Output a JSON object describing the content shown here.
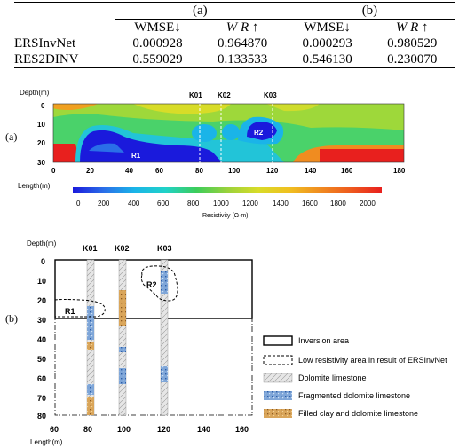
{
  "table": {
    "group_a": "(a)",
    "group_b": "(b)",
    "col_wmse": "WMSE↓",
    "col_wr": "W R ↑",
    "rows": [
      {
        "method": "ERSInvNet",
        "a_wmse": "0.000928",
        "a_wr": "0.964870",
        "b_wmse": "0.000293",
        "b_wr": "0.980529"
      },
      {
        "method": "RES2DINV",
        "a_wmse": "0.559029",
        "a_wr": "0.133533",
        "b_wmse": "0.546130",
        "b_wr": "0.230070"
      }
    ]
  },
  "panel_a": {
    "label": "(a)",
    "depth_label": "Depth(m)",
    "length_label": "Length(m)",
    "depth_ticks": [
      "0",
      "10",
      "20",
      "30"
    ],
    "length_ticks": [
      "0",
      "20",
      "40",
      "60",
      "80",
      "100",
      "120",
      "140",
      "160",
      "180"
    ],
    "boreholes": [
      "K01",
      "K02",
      "K03"
    ],
    "regions": [
      "R1",
      "R2"
    ],
    "colorbar_ticks": [
      "0",
      "200",
      "400",
      "600",
      "800",
      "1000",
      "1200",
      "1400",
      "1600",
      "1800",
      "2000"
    ],
    "colorbar_label": "Resistivity (Ω·m)",
    "colors": [
      "#1a1adc",
      "#2a6ee8",
      "#1ab4e8",
      "#20d2c8",
      "#3ccd5a",
      "#9ad23c",
      "#d8dc28",
      "#f0c020",
      "#f08c20",
      "#ee5a1e",
      "#e8201e"
    ]
  },
  "panel_b": {
    "label": "(b)",
    "depth_label": "Depth(m)",
    "length_label": "Length(m)",
    "depth_ticks": [
      "0",
      "10",
      "20",
      "30",
      "40",
      "50",
      "60",
      "70",
      "80"
    ],
    "length_ticks": [
      "60",
      "80",
      "100",
      "120",
      "140",
      "160"
    ],
    "boreholes": [
      "K01",
      "K02",
      "K03"
    ],
    "regions": [
      "R1",
      "R2"
    ],
    "legend": [
      "Inversion area",
      "Low resistivity area in result of ERSInvNet",
      "Dolomite limestone",
      "Fragmented dolomite limestone",
      "Filled clay and dolomite limestone"
    ]
  }
}
